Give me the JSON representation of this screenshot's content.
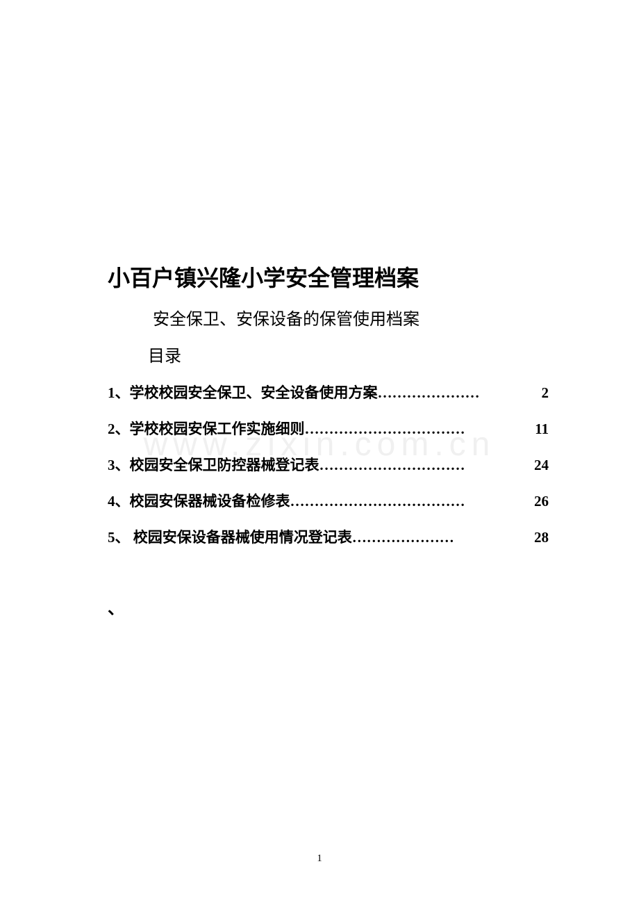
{
  "watermark": "www.zixin.com.cn",
  "main_title": "小百户镇兴隆小学安全管理档案",
  "subtitle": "安全保卫、安保设备的保管使用档案",
  "toc_label": "目录",
  "toc": [
    {
      "num": "1、",
      "title": "学校校园安全保卫、安全设备使用方案",
      "page": "2",
      "dots": "…………………"
    },
    {
      "num": "2、",
      "title": "学校校园安保工作实施细则",
      "page": "11",
      "dots": "……………………………"
    },
    {
      "num": "3、",
      "title": "校园安全保卫防控器械登记表",
      "page": "24",
      "dots": "…………………………"
    },
    {
      "num": "4、",
      "title": "校园安保器械设备检修表",
      "page": "26",
      "dots": "………………………………"
    },
    {
      "num": "5、 ",
      "title": "校园安保设备器械使用情况登记表",
      "page": "28",
      "dots": "…………………   "
    }
  ],
  "stray_mark": "、",
  "page_number": "1",
  "colors": {
    "background": "#ffffff",
    "text": "#000000",
    "watermark": "#f0f0f0"
  }
}
